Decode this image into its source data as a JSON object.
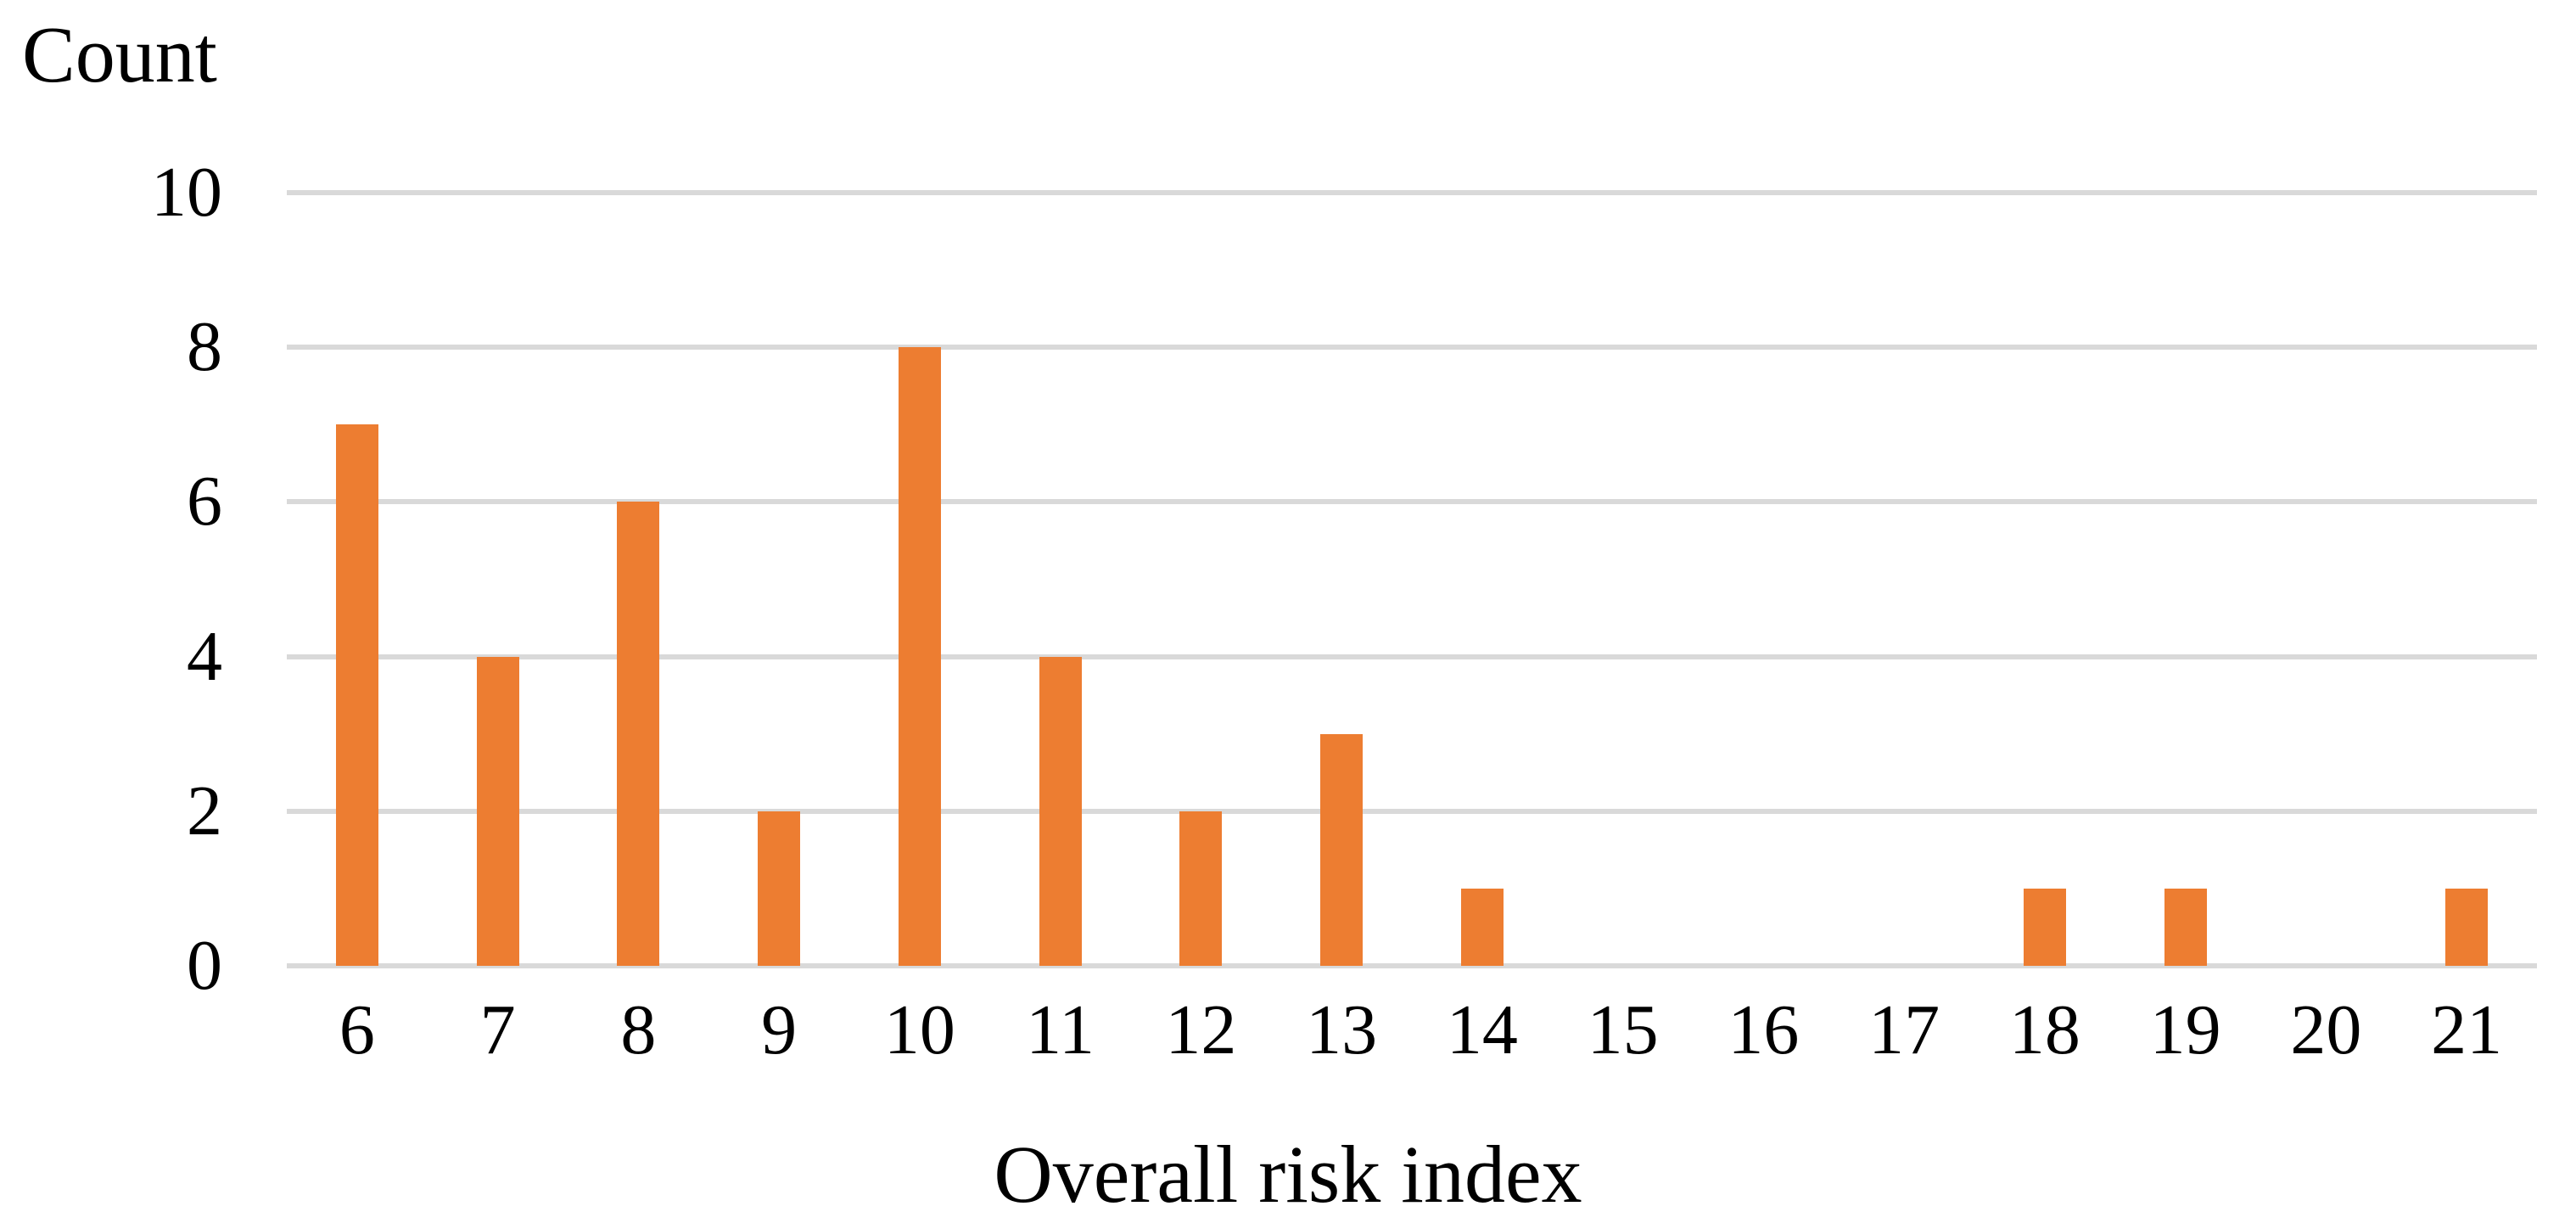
{
  "chart_data": {
    "type": "bar",
    "title": "",
    "xlabel": "Overall risk index",
    "ylabel": "Count",
    "categories": [
      6,
      7,
      8,
      9,
      10,
      11,
      12,
      13,
      14,
      15,
      16,
      17,
      18,
      19,
      20,
      21
    ],
    "values": [
      7,
      4,
      6,
      2,
      8,
      4,
      2,
      3,
      1,
      0,
      0,
      0,
      1,
      1,
      0,
      1
    ],
    "yticks": [
      0,
      2,
      4,
      6,
      8,
      10
    ],
    "ylim": [
      0,
      10
    ],
    "grid": true,
    "legend_position": "none",
    "bar_color": "#ED7D31",
    "gridline_color": "#D9D9D9",
    "axis_line_color": "#D9D9D9",
    "text_color": "#000000"
  }
}
